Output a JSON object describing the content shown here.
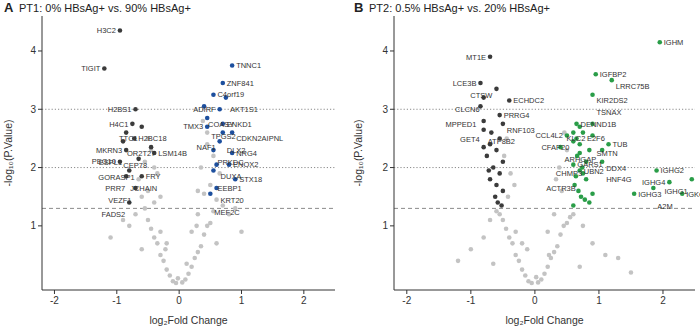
{
  "chart_data": [
    {
      "type": "scatter",
      "panel_label": "A",
      "title": "PT1: 0% HBsAg+ vs. 90% HBsAg+",
      "x_label": "log₂Fold Change",
      "y_label": "-log₁₀(P.Value)",
      "xlim": [
        -2.2,
        2.5
      ],
      "ylim": [
        -0.1,
        4.6
      ],
      "xticks": [
        -2,
        -1,
        0,
        1,
        2
      ],
      "yticks": [
        1,
        2,
        3,
        4
      ],
      "hlines": [
        {
          "value": 3,
          "line_style": "dotted"
        },
        {
          "value": 2,
          "line_style": "dotted"
        },
        {
          "value": 1.3,
          "line_style": "dashed"
        }
      ],
      "series": [
        {
          "color": "#c3c3c3",
          "x": [
            -0.1,
            0.1,
            -0.2,
            0.2,
            -0.3,
            0.3,
            -0.15,
            0.15,
            -0.4,
            0.4,
            -0.5,
            0.5,
            -0.25,
            0.25,
            -0.35,
            0.35,
            -0.45,
            0.45,
            -0.55,
            0.55,
            -0.6,
            0.6,
            -0.05,
            0.05,
            -0.3,
            0.3,
            -0.5,
            0.5,
            -0.4,
            0.4,
            -0.65,
            0.65,
            -0.2,
            0.2,
            -0.7,
            0.7,
            -0.8,
            0.8,
            -0.35,
            0.35,
            -0.55,
            0.55,
            -0.45,
            0.45,
            -0.9,
            0.9,
            -1.1,
            1.0,
            -0.6,
            0.6,
            -0.3,
            0.3,
            -0.5,
            0.45,
            -0.4,
            0.38,
            -0.02,
            0.12,
            -0.22,
            0.28
          ],
          "y": [
            0.05,
            0.08,
            0.25,
            0.3,
            0.5,
            0.55,
            0.15,
            0.18,
            0.8,
            0.85,
            1.1,
            1.05,
            0.4,
            0.45,
            0.7,
            0.65,
            0.95,
            1.0,
            1.3,
            1.25,
            1.5,
            1.45,
            0.02,
            0.03,
            0.9,
            1.2,
            1.6,
            1.7,
            1.4,
            1.55,
            1.8,
            1.9,
            0.7,
            0.9,
            1.2,
            1.35,
            1.0,
            1.2,
            1.9,
            2.0,
            2.1,
            2.2,
            2.3,
            2.4,
            1.1,
            1.3,
            0.8,
            0.9,
            0.6,
            0.7,
            1.5,
            1.6,
            2.5,
            2.6,
            2.0,
            2.8,
            0.1,
            0.35,
            0.6,
            1.0
          ]
        },
        {
          "color": "#3b3b3b",
          "x": [
            -0.95,
            -1.2,
            -0.7,
            -0.75,
            -0.6,
            -0.85,
            -0.72,
            -0.9,
            -0.45,
            -0.4,
            -0.85,
            -0.65,
            -0.95,
            -0.8,
            -0.85,
            -0.6,
            -0.7,
            -0.8
          ],
          "y": [
            4.35,
            3.7,
            3.0,
            2.75,
            2.7,
            2.6,
            2.5,
            2.45,
            2.35,
            2.25,
            2.3,
            2.15,
            2.1,
            1.95,
            1.85,
            1.85,
            1.65,
            1.4
          ],
          "labels": [
            "H3C2",
            "TIGIT",
            "H2BS1",
            "H4C1",
            "TTC1",
            "MKRN3",
            "H2BC18",
            "OR2T27",
            "CEP78",
            "LSM14B",
            "ESPL1",
            "GORASP1",
            "PEG10",
            "PRR7",
            "JCHAIN",
            "FRY",
            "VEZF1",
            "FADS2"
          ]
        },
        {
          "color": "#1d4f9e",
          "x": [
            0.85,
            0.7,
            0.55,
            0.75,
            0.4,
            0.65,
            0.45,
            0.7,
            0.45,
            0.7,
            0.85,
            0.65,
            0.55,
            0.85,
            0.6,
            0.55,
            0.8,
            0.9,
            0.6,
            0.5
          ],
          "y": [
            3.75,
            3.45,
            3.25,
            3.2,
            3.05,
            3.0,
            2.85,
            2.75,
            2.7,
            2.6,
            2.6,
            2.45,
            2.3,
            2.25,
            2.05,
            1.95,
            2.05,
            1.8,
            1.65,
            1.55
          ],
          "labels": [
            "TNNC1",
            "ZNF841",
            "C4orf19",
            "AKT1S1",
            "COASY",
            "ADIRF",
            "TPGS2",
            "ENKD1",
            "TMX3",
            "DLX2",
            "CDKN2AIPNL",
            "NAF1",
            "PRKDC",
            "NRG4",
            "DUXA",
            "EEBP1",
            "ENOX2",
            "STX18",
            "KRT20",
            "MEF2C"
          ]
        }
      ]
    },
    {
      "type": "scatter",
      "panel_label": "B",
      "title": "PT2: 0.5% HBsAg+ vs. 20% HBsAg+",
      "x_label": "log₂Fold Change",
      "y_label": "-log₁₀(P.Value)",
      "xlim": [
        -2.2,
        2.5
      ],
      "ylim": [
        -0.1,
        4.6
      ],
      "xticks": [
        -2,
        -1,
        0,
        1,
        2
      ],
      "yticks": [
        1,
        2,
        3,
        4
      ],
      "hlines": [
        {
          "value": 3,
          "line_style": "dotted"
        },
        {
          "value": 2,
          "line_style": "dotted"
        },
        {
          "value": 1.3,
          "line_style": "dashed"
        }
      ],
      "series": [
        {
          "color": "#c3c3c3",
          "x": [
            -0.1,
            0.1,
            -0.2,
            0.2,
            -0.3,
            0.3,
            -0.15,
            0.15,
            -0.4,
            0.4,
            -0.5,
            0.5,
            -0.25,
            0.25,
            -0.35,
            0.35,
            -0.45,
            0.45,
            -0.55,
            0.55,
            -0.6,
            0.6,
            -0.05,
            0.05,
            -0.3,
            0.3,
            -0.42,
            0.42,
            -0.38,
            0.38,
            -0.7,
            0.75,
            -0.2,
            0.2,
            -0.8,
            0.9,
            -1.0,
            1.1,
            -0.32,
            0.33,
            -0.48,
            0.5,
            -0.44,
            0.46,
            -1.2,
            1.3,
            0.7,
            -0.65,
            1.5,
            0.02,
            -0.12,
            0.22
          ],
          "y": [
            0.05,
            0.08,
            0.25,
            0.3,
            0.5,
            0.55,
            0.15,
            0.18,
            0.8,
            0.85,
            1.1,
            1.05,
            0.4,
            0.45,
            0.7,
            0.65,
            0.95,
            1.0,
            1.2,
            1.15,
            1.25,
            1.2,
            0.02,
            0.03,
            0.9,
            1.2,
            1.5,
            1.6,
            1.9,
            2.0,
            1.1,
            1.0,
            0.7,
            0.9,
            0.8,
            0.7,
            0.6,
            0.5,
            1.7,
            1.8,
            2.2,
            2.3,
            2.5,
            2.6,
            0.4,
            0.45,
            0.3,
            0.35,
            0.2,
            0.12,
            0.6,
            0.5
          ]
        },
        {
          "color": "#3b3b3b",
          "x": [
            -0.7,
            -0.85,
            -0.6,
            -0.8,
            -0.4,
            -0.85,
            -0.55,
            -0.8,
            -0.5,
            -0.8,
            -0.55,
            -0.7,
            -0.6,
            -0.75,
            -0.5,
            -0.65,
            -0.8,
            -0.55,
            -0.7,
            -0.6,
            -0.5,
            -0.62,
            -0.72,
            -0.58,
            -0.68,
            -0.52
          ],
          "y": [
            3.9,
            3.45,
            3.35,
            3.2,
            3.15,
            3.05,
            2.9,
            2.8,
            2.75,
            2.65,
            2.5,
            2.4,
            2.3,
            2.2,
            2.1,
            2.0,
            2.35,
            1.9,
            1.8,
            1.7,
            1.6,
            1.5,
            1.95,
            1.4,
            2.6,
            1.35
          ],
          "labels": [
            "MT1E",
            "LCE3B",
            "CTSW",
            "CLCN6",
            "ECHDC2",
            "MPPED1",
            "PRRG4",
            "GET4",
            "RNF103",
            "ATP8B2",
            null,
            null,
            null,
            null,
            null,
            null,
            null,
            null,
            null,
            null,
            null,
            null,
            null,
            null,
            null,
            null
          ]
        },
        {
          "color": "#2a9d48",
          "x": [
            1.95,
            0.95,
            1.2,
            0.9,
            0.65,
            0.9,
            0.75,
            0.9,
            0.5,
            1.15,
            0.6,
            0.4,
            0.7,
            0.85,
            1.05,
            0.8,
            1.05,
            0.6,
            0.7,
            1.9,
            2.1,
            2.45,
            1.85,
            2.3,
            1.55,
            0.6,
            0.65,
            0.7,
            0.75,
            0.8,
            0.62,
            0.68,
            0.72,
            0.78,
            0.85,
            0.6,
            0.66,
            0.74,
            0.9,
            0.64,
            0.7
          ],
          "y": [
            4.15,
            3.6,
            3.5,
            3.25,
            2.75,
            2.75,
            2.6,
            2.55,
            2.55,
            2.4,
            2.45,
            2.35,
            2.25,
            2.3,
            2.3,
            2.1,
            2.1,
            2.05,
            1.95,
            1.95,
            1.75,
            1.8,
            1.65,
            1.55,
            1.55,
            2.6,
            2.5,
            2.4,
            1.9,
            1.8,
            1.7,
            1.6,
            1.5,
            1.45,
            1.4,
            1.35,
            2.2,
            2.0,
            1.55,
            1.85,
            2.7
          ],
          "labels": [
            "IGHM",
            "IGFBP2",
            "LRRC75B",
            "KIR2DS2",
            "DENND1B",
            "TSNAX",
            "E2F6",
            "SMTN",
            "CCL4L2",
            "TUB",
            "CFAP20",
            "ARHGAP",
            "UBN2",
            "KLC2",
            "DDX4",
            "CHMP3",
            "HNF4G",
            "GARS1",
            "ACTR3B",
            "IGHG2",
            "IGHG4",
            "IGHG1",
            "A2M",
            "IGKC",
            "IGHG3",
            null,
            null,
            null,
            null,
            null,
            null,
            null,
            null,
            null,
            null,
            null,
            null,
            null,
            null,
            null,
            null
          ]
        }
      ]
    }
  ]
}
